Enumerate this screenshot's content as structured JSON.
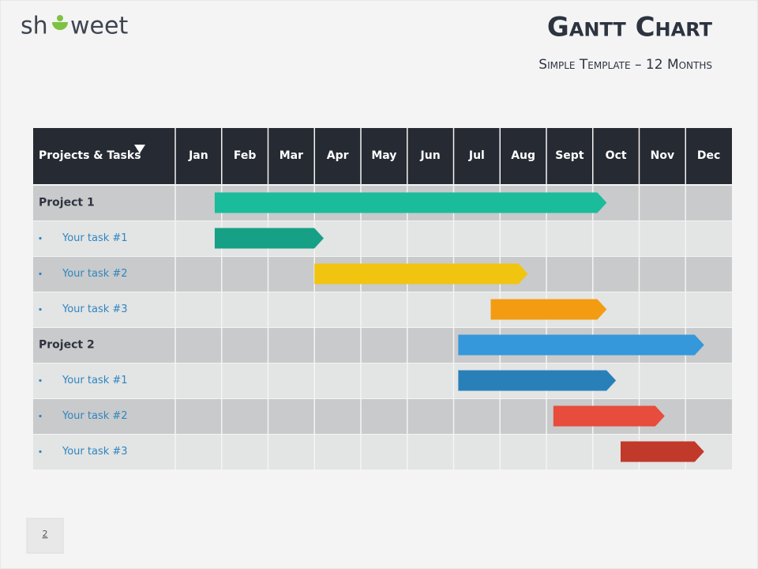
{
  "logo": {
    "left": "sh",
    "right": "weet"
  },
  "title": "Gantt Chart",
  "subtitle": "Simple Template – 12 Months",
  "table": {
    "header": "Projects & Tasks",
    "months": [
      "Jan",
      "Feb",
      "Mar",
      "Apr",
      "May",
      "Jun",
      "Jul",
      "Aug",
      "Sept",
      "Oct",
      "Nov",
      "Dec"
    ],
    "rows": [
      {
        "label": "Project 1",
        "kind": "project",
        "start": 0.85,
        "end": 9.3,
        "color": "#1abc9c"
      },
      {
        "label": "Your task #1",
        "kind": "task",
        "start": 0.85,
        "end": 3.2,
        "color": "#16a085"
      },
      {
        "label": "Your task #2",
        "kind": "task",
        "start": 3.0,
        "end": 7.6,
        "color": "#f1c40f"
      },
      {
        "label": "Your task #3",
        "kind": "task",
        "start": 6.8,
        "end": 9.3,
        "color": "#f39c12"
      },
      {
        "label": "Project 2",
        "kind": "project",
        "start": 6.1,
        "end": 11.4,
        "color": "#3498db"
      },
      {
        "label": "Your task #1",
        "kind": "task",
        "start": 6.1,
        "end": 9.5,
        "color": "#2980b9"
      },
      {
        "label": "Your task #2",
        "kind": "task",
        "start": 8.15,
        "end": 10.55,
        "color": "#e74c3c"
      },
      {
        "label": "Your task #3",
        "kind": "task",
        "start": 9.6,
        "end": 11.4,
        "color": "#c0392b"
      }
    ]
  },
  "page_number": "2"
}
